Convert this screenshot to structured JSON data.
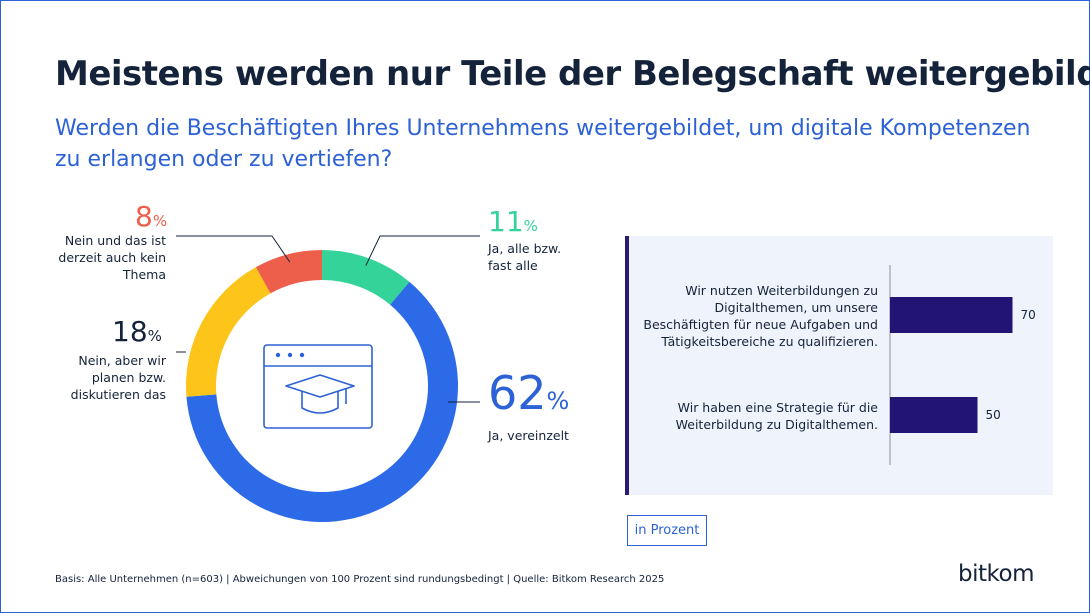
{
  "header": {
    "title": "Meistens werden nur Teile der Belegschaft weitergebildet",
    "subtitle": "Werden die Beschäftigten Ihres Unternehmens weitergebildet, um digitale Kompetenzen zu erlangen oder zu vertiefen?"
  },
  "colors": {
    "blue": "#2d6ae8",
    "green": "#34d39a",
    "red": "#ee5f4b",
    "yellow": "#fdc419",
    "navy": "#221475"
  },
  "chart_data": [
    {
      "type": "pie",
      "title": "Werden die Beschäftigten Ihres Unternehmens weitergebildet, um digitale Kompetenzen zu erlangen oder zu vertiefen?",
      "percent_symbol": "%",
      "slices": [
        {
          "label": "Ja, alle bzw. fast alle",
          "value": 11,
          "color": "#34d39a"
        },
        {
          "label": "Ja, vereinzelt",
          "value": 62,
          "color": "#2d6ae8"
        },
        {
          "label": "Nein, aber wir planen bzw. diskutieren das",
          "value": 18,
          "color": "#fdc419"
        },
        {
          "label": "Nein und das ist derzeit auch kein Thema",
          "value": 8,
          "color": "#ee5f4b"
        }
      ],
      "center_icon": "online-learning-graduation-cap-icon"
    },
    {
      "type": "bar",
      "orientation": "horizontal",
      "unit": "in Prozent",
      "xlim": [
        0,
        100
      ],
      "categories": [
        "Wir nutzen Weiterbildungen zu Digitalthemen, um unsere Beschäftigten für neue Aufgaben und Tätigkeitsbereiche zu qualifizieren.",
        "Wir haben eine Strategie für die Weiterbildung zu Digitalthemen."
      ],
      "values": [
        70,
        50
      ],
      "color": "#221475"
    }
  ],
  "footer": {
    "source": "Basis: Alle Unternehmen (n=603) | Abweichungen von 100 Prozent sind rundungsbedingt | Quelle: Bitkom Research 2025",
    "logo": "bitkom"
  }
}
